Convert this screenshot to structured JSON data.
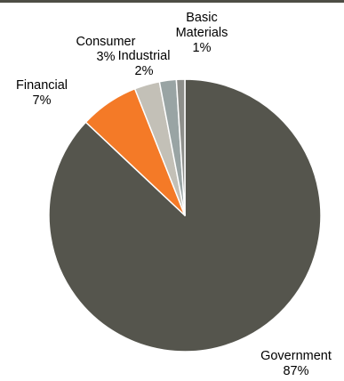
{
  "chart_data": {
    "type": "pie",
    "title": "",
    "start_angle_deg": 0,
    "direction": "clockwise",
    "slices": [
      {
        "name": "Government",
        "value": 87,
        "label_lines": [
          "Government",
          "87%"
        ],
        "color": "#55554d"
      },
      {
        "name": "Financial",
        "value": 7,
        "label_lines": [
          "Financial",
          "7%"
        ],
        "color": "#f47a27"
      },
      {
        "name": "Consumer",
        "value": 3,
        "label_lines": [
          "Consumer",
          "3%"
        ],
        "color": "#c3c0b7"
      },
      {
        "name": "Industrial",
        "value": 2,
        "label_lines": [
          "Industrial",
          "2%"
        ],
        "color": "#99a4a4"
      },
      {
        "name": "Basic Materials",
        "value": 1,
        "label_lines": [
          "Basic",
          "Materials",
          "1%"
        ],
        "color": "#8e8f8b"
      }
    ],
    "slice_edge_color": "#ffffff",
    "top_rule_color": "#4d4d45"
  }
}
